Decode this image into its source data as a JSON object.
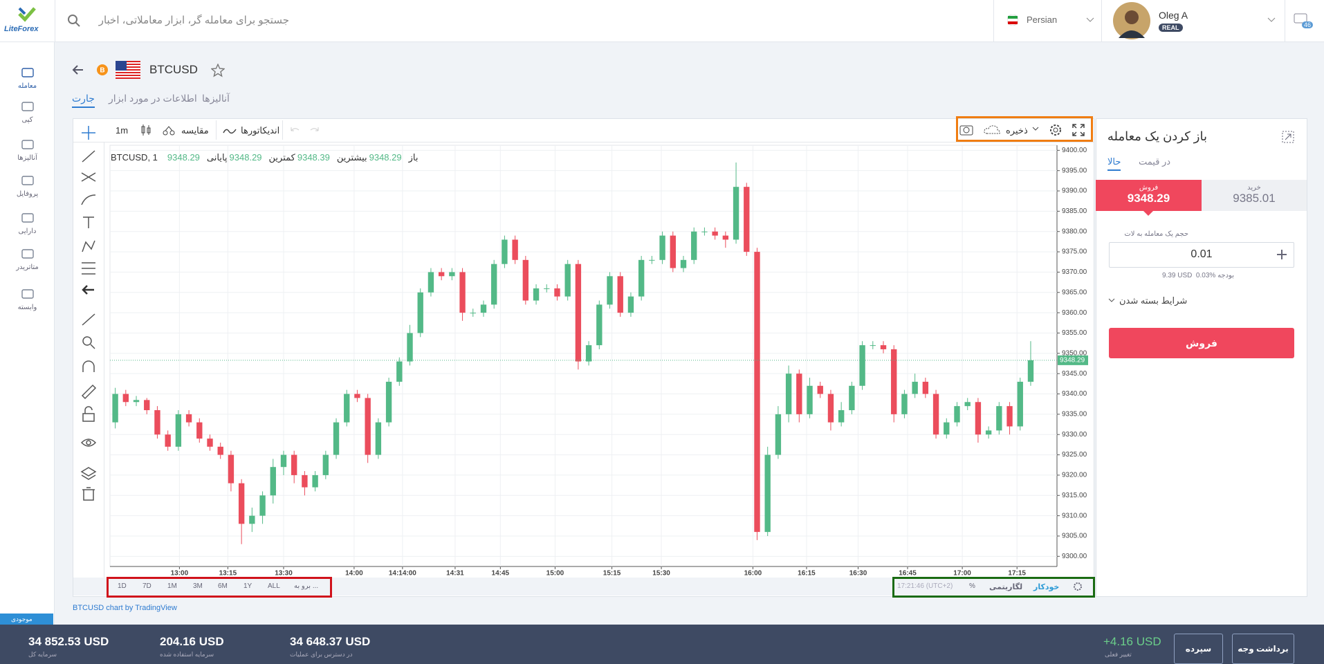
{
  "header": {
    "logo": "LiteForex",
    "search_placeholder": "جستجو برای معامله گر، ابزار معاملاتی، اخبار",
    "language": "Persian",
    "user_name": "Oleg A",
    "account_type": "REAL",
    "notifications": 46
  },
  "sidebar": [
    "معامله",
    "کپی",
    "آنالیزها",
    "پروفایل",
    "دارایی",
    "متاتریدر",
    "وابسته"
  ],
  "instrument": {
    "symbol": "BTCUSD",
    "tabs": [
      "جارت",
      "اطلاعات در مورد ابزار",
      "آنالیزها"
    ]
  },
  "toolbar": {
    "interval": "1m",
    "compare": "مقایسه",
    "indicators": "اندیکاتورها",
    "save": "ذخیره"
  },
  "chart_data": {
    "type": "candlestick",
    "symbol": "BTCUSD, 1",
    "legend": [
      {
        "label": "باز",
        "value": 9348.29
      },
      {
        "label": "بیشترین",
        "value": 9348.39
      },
      {
        "label": "کمترین",
        "value": 9348.29
      },
      {
        "label": "پایانی",
        "value": 9348.29
      }
    ],
    "ohlc": [
      [
        9333,
        9341.5,
        9331.5,
        9340
      ],
      [
        9340,
        9341,
        9337,
        9338
      ],
      [
        9338,
        9339.5,
        9337,
        9338.5
      ],
      [
        9338.5,
        9339,
        9335,
        9336
      ],
      [
        9336,
        9337,
        9329,
        9330
      ],
      [
        9330,
        9331,
        9326,
        9327
      ],
      [
        9327,
        9336,
        9326,
        9335
      ],
      [
        9335,
        9336,
        9332,
        9333
      ],
      [
        9333,
        9334,
        9328,
        9329
      ],
      [
        9329,
        9330,
        9326,
        9327
      ],
      [
        9327,
        9328,
        9324,
        9325
      ],
      [
        9325,
        9326,
        9316,
        9318
      ],
      [
        9318,
        9319,
        9303,
        9308
      ],
      [
        9308,
        9312,
        9306,
        9310
      ],
      [
        9310,
        9316,
        9308,
        9315
      ],
      [
        9315,
        9324,
        9313,
        9322
      ],
      [
        9322,
        9326,
        9320,
        9325
      ],
      [
        9325,
        9326,
        9318,
        9320
      ],
      [
        9320,
        9321,
        9315,
        9317
      ],
      [
        9317,
        9321,
        9316,
        9320
      ],
      [
        9320,
        9326,
        9319,
        9325
      ],
      [
        9325,
        9334,
        9324,
        9333
      ],
      [
        9333,
        9341,
        9332,
        9340
      ],
      [
        9340,
        9341,
        9338,
        9339
      ],
      [
        9339,
        9340,
        9323,
        9325
      ],
      [
        9325,
        9334,
        9324,
        9333
      ],
      [
        9333,
        9344,
        9332,
        9343
      ],
      [
        9343,
        9349,
        9342,
        9348
      ],
      [
        9348,
        9357,
        9347,
        9355
      ],
      [
        9355,
        9366,
        9354,
        9365
      ],
      [
        9365,
        9371,
        9364,
        9370
      ],
      [
        9370,
        9371,
        9368,
        9369
      ],
      [
        9369,
        9371,
        9368,
        9370
      ],
      [
        9370,
        9371,
        9358,
        9360
      ],
      [
        9360,
        9361,
        9359,
        9360
      ],
      [
        9360,
        9363,
        9359,
        9362
      ],
      [
        9362,
        9373,
        9361,
        9372
      ],
      [
        9372,
        9379,
        9371,
        9378
      ],
      [
        9378,
        9379,
        9372,
        9373
      ],
      [
        9373,
        9374,
        9362,
        9363
      ],
      [
        9363,
        9367,
        9362,
        9366
      ],
      [
        9366,
        9367,
        9365,
        9366
      ],
      [
        9366,
        9367,
        9363,
        9364
      ],
      [
        9364,
        9373,
        9363,
        9372
      ],
      [
        9372,
        9373,
        9346,
        9348
      ],
      [
        9348,
        9353,
        9347,
        9352
      ],
      [
        9352,
        9363,
        9351,
        9362
      ],
      [
        9362,
        9370,
        9361,
        9369
      ],
      [
        9369,
        9370,
        9359,
        9360
      ],
      [
        9360,
        9365,
        9359,
        9364
      ],
      [
        9364,
        9374,
        9363,
        9373
      ],
      [
        9373,
        9374,
        9372,
        9373
      ],
      [
        9373,
        9380,
        9372,
        9379
      ],
      [
        9379,
        9380,
        9370,
        9371
      ],
      [
        9371,
        9374,
        9370,
        9373
      ],
      [
        9373,
        9381,
        9372,
        9380
      ],
      [
        9380,
        9381,
        9379,
        9380
      ],
      [
        9380,
        9381,
        9378,
        9379
      ],
      [
        9379,
        9380,
        9376,
        9378
      ],
      [
        9378,
        9397,
        9377,
        9391
      ],
      [
        9391,
        9392,
        9374,
        9375
      ],
      [
        9375,
        9376,
        9304,
        9306
      ],
      [
        9306,
        9327,
        9305,
        9325
      ],
      [
        9325,
        9337,
        9324,
        9335
      ],
      [
        9335,
        9347,
        9333,
        9345
      ],
      [
        9345,
        9346,
        9333,
        9335
      ],
      [
        9335,
        9344,
        9334,
        9342
      ],
      [
        9342,
        9343,
        9339,
        9340
      ],
      [
        9340,
        9341,
        9331,
        9333
      ],
      [
        9333,
        9338,
        9332,
        9336
      ],
      [
        9336,
        9343,
        9335,
        9342
      ],
      [
        9342,
        9353,
        9341,
        9352
      ],
      [
        9352,
        9353,
        9351,
        9352
      ],
      [
        9352,
        9353,
        9350,
        9351
      ],
      [
        9351,
        9352,
        9333,
        9335
      ],
      [
        9335,
        9341,
        9334,
        9340
      ],
      [
        9340,
        9345,
        9339,
        9343
      ],
      [
        9343,
        9344,
        9339,
        9340
      ],
      [
        9340,
        9341,
        9329,
        9330
      ],
      [
        9330,
        9334,
        9329,
        9333
      ],
      [
        9333,
        9338,
        9332,
        9337
      ],
      [
        9337,
        9339,
        9336,
        9338
      ],
      [
        9338,
        9339,
        9328,
        9330
      ],
      [
        9330,
        9332,
        9329,
        9331
      ],
      [
        9331,
        9338,
        9330,
        9337
      ],
      [
        9337,
        9338,
        9330,
        9332
      ],
      [
        9332,
        9344,
        9331,
        9343
      ],
      [
        9343,
        9353,
        9342,
        9348.29
      ]
    ],
    "xlim": [
      0,
      90
    ],
    "xticks": [
      {
        "value": 6.6,
        "label": "13:00"
      },
      {
        "value": 11.2,
        "label": "13:15"
      },
      {
        "value": 16.5,
        "label": "13:30"
      },
      {
        "value": 23.2,
        "label": "14:00"
      },
      {
        "value": 27.8,
        "label": "14:14:00"
      },
      {
        "value": 32.8,
        "label": "14:31"
      },
      {
        "value": 37.1,
        "label": "14:45"
      },
      {
        "value": 42.3,
        "label": "15:00"
      },
      {
        "value": 47.7,
        "label": "15:15"
      },
      {
        "value": 52.4,
        "label": "15:30"
      },
      {
        "value": 61.1,
        "label": "16:00"
      },
      {
        "value": 66.2,
        "label": "16:15"
      },
      {
        "value": 71.1,
        "label": "16:30"
      },
      {
        "value": 75.8,
        "label": "16:45"
      },
      {
        "value": 81,
        "label": "17:00"
      },
      {
        "value": 86.2,
        "label": "17:15"
      }
    ],
    "ylim": [
      9297.5,
      9401.25
    ],
    "yticks": [
      {
        "value": 9300,
        "label": "9300.00"
      },
      {
        "value": 9305,
        "label": "9305.00"
      },
      {
        "value": 9310,
        "label": "9310.00"
      },
      {
        "value": 9315,
        "label": "9315.00"
      },
      {
        "value": 9320,
        "label": "9320.00"
      },
      {
        "value": 9325,
        "label": "9325.00"
      },
      {
        "value": 9330,
        "label": "9330.00"
      },
      {
        "value": 9335,
        "label": "9335.00"
      },
      {
        "value": 9340,
        "label": "9340.00"
      },
      {
        "value": 9345,
        "label": "9345.00"
      },
      {
        "value": 9350,
        "label": "9350.00"
      },
      {
        "value": 9355,
        "label": "9355.00"
      },
      {
        "value": 9360,
        "label": "9360.00"
      },
      {
        "value": 9365,
        "label": "9365.00"
      },
      {
        "value": 9370,
        "label": "9370.00"
      },
      {
        "value": 9375,
        "label": "9375.00"
      },
      {
        "value": 9380,
        "label": "9380.00"
      },
      {
        "value": 9385,
        "label": "9385.00"
      },
      {
        "value": 9390,
        "label": "9390.00"
      },
      {
        "value": 9395,
        "label": "9395.00"
      },
      {
        "value": 9400,
        "label": "9400.00"
      }
    ],
    "grid": true,
    "up_color": "#53b987",
    "down_color": "#eb4d5c"
  },
  "range_buttons": [
    "1D",
    "7D",
    "1M",
    "3M",
    "6M",
    "1Y",
    "ALL",
    "برو به ..."
  ],
  "chart_footer": {
    "time": "17:21:46 (UTC+2)",
    "percent": "%",
    "log": "لگاریتمی",
    "auto": "خودکار"
  },
  "credit": "BTCUSD chart by TradingView",
  "trade_panel": {
    "title": "باز کردن یک معامله",
    "tabs": [
      "حالا",
      "در قیمت"
    ],
    "sell_label": "فروش",
    "sell_price": 9348.29,
    "buy_label": "خرید",
    "buy_price": 9385.01,
    "volume_label": "حجم یک معامله به لات",
    "volume": "0.01",
    "budget_label": "بودجه",
    "budget_percent": "0.03%",
    "budget_value": "9.39 USD",
    "close_conditions": "شرایط بسته شدن",
    "sell_button": "فروش"
  },
  "balance_tab": "موجودی",
  "footer": {
    "stats": [
      {
        "value": "34 852.53 USD",
        "label": "سرمایه کل"
      },
      {
        "value": "204.16 USD",
        "label": "سرمایه استفاده شده"
      },
      {
        "value": "34 648.37 USD",
        "label": "در دسترس برای عملیات"
      }
    ],
    "pnl": "+4.16 USD",
    "pnl_label": "تغییر فعلی",
    "deposit": "سپرده",
    "withdraw": "برداشت وجه"
  }
}
